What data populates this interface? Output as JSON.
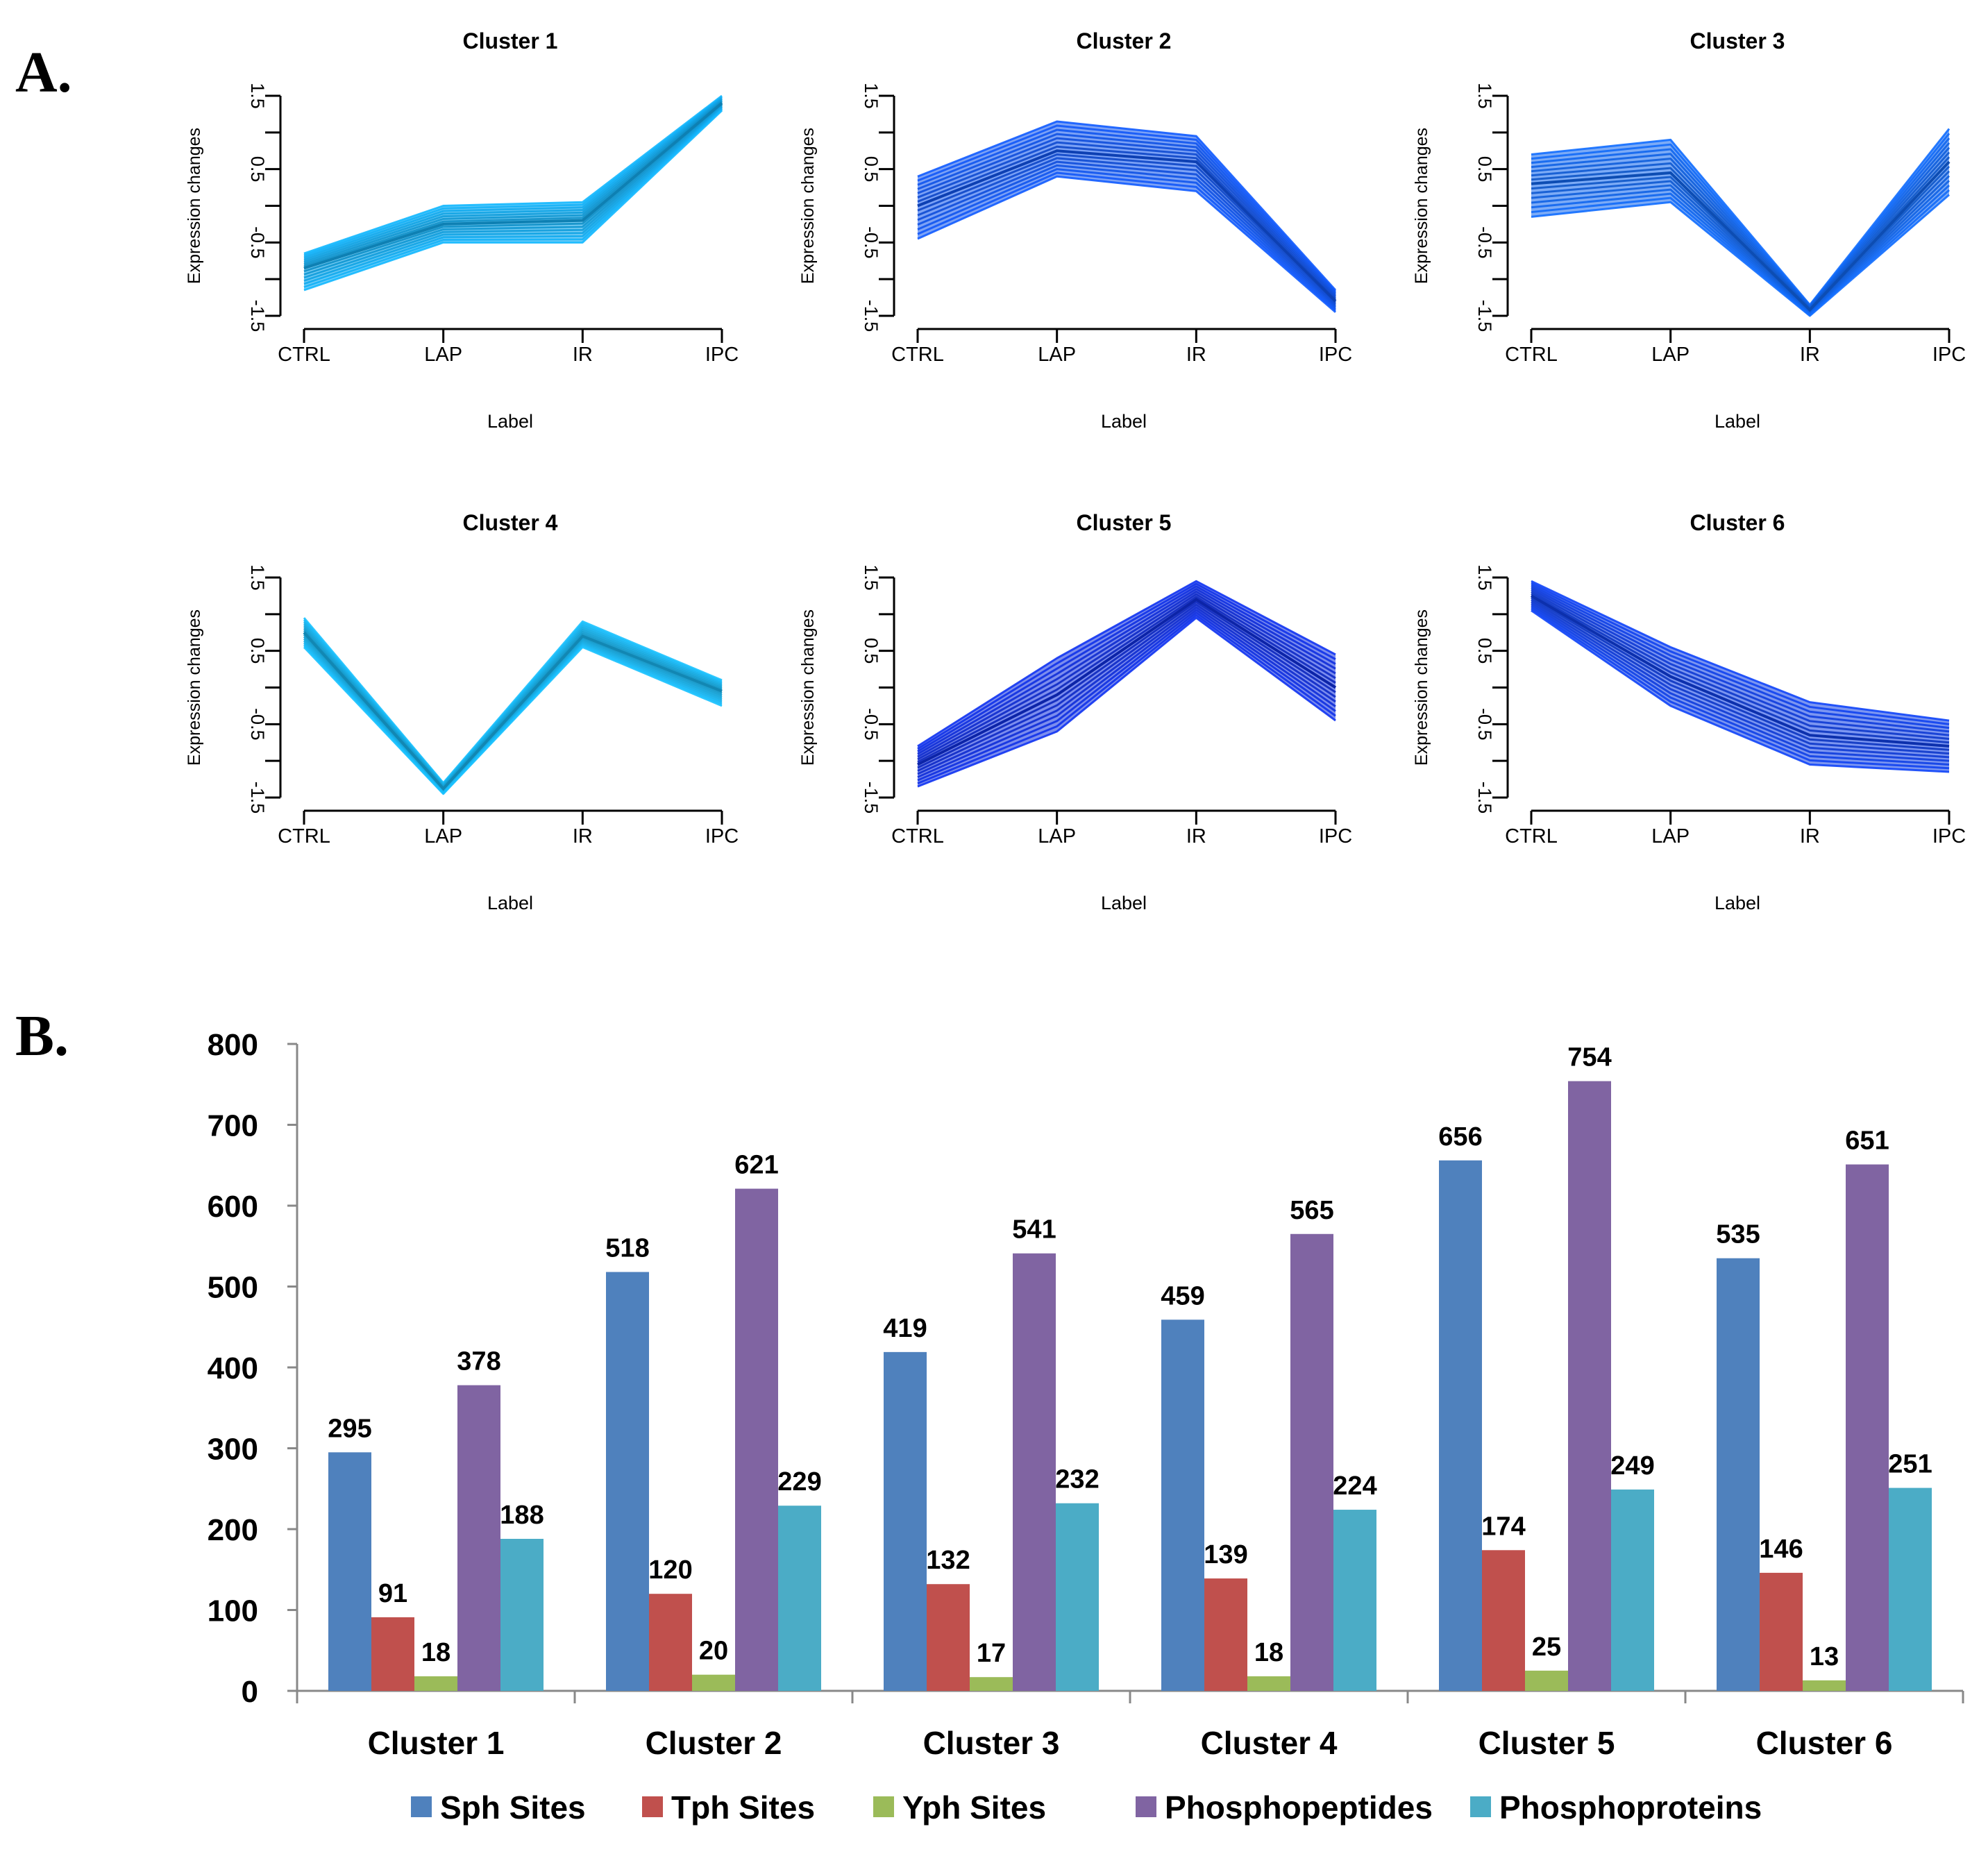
{
  "panel_labels": {
    "a": "A.",
    "b": "B."
  },
  "chart_data": [
    {
      "type": "line",
      "title": "Cluster 1",
      "xlabel": "Label",
      "ylabel": "Expression changes",
      "categories": [
        "CTRL",
        "LAP",
        "IR",
        "IPC"
      ],
      "yticks": [
        "-1.5",
        "-0.5",
        "0.5",
        "1.5"
      ],
      "ylim": [
        -1.5,
        1.5
      ],
      "color": "#12aaee",
      "series": [
        {
          "name": "upper envelope",
          "values": [
            -0.65,
            0.0,
            0.05,
            1.5
          ]
        },
        {
          "name": "median profile",
          "values": [
            -0.85,
            -0.25,
            -0.2,
            1.4
          ]
        },
        {
          "name": "lower envelope",
          "values": [
            -1.15,
            -0.5,
            -0.5,
            1.3
          ]
        }
      ]
    },
    {
      "type": "line",
      "title": "Cluster 2",
      "xlabel": "Label",
      "ylabel": "Expression changes",
      "categories": [
        "CTRL",
        "LAP",
        "IR",
        "IPC"
      ],
      "yticks": [
        "-1.5",
        "-0.5",
        "0.5",
        "1.5"
      ],
      "ylim": [
        -1.5,
        1.5
      ],
      "color": "#1155ee",
      "series": [
        {
          "name": "upper envelope",
          "values": [
            0.4,
            1.15,
            0.95,
            -1.15
          ]
        },
        {
          "name": "median profile",
          "values": [
            0.0,
            0.75,
            0.6,
            -1.3
          ]
        },
        {
          "name": "lower envelope",
          "values": [
            -0.45,
            0.4,
            0.2,
            -1.45
          ]
        }
      ]
    },
    {
      "type": "line",
      "title": "Cluster 3",
      "xlabel": "Label",
      "ylabel": "Expression changes",
      "categories": [
        "CTRL",
        "LAP",
        "IR",
        "IPC"
      ],
      "yticks": [
        "-1.5",
        "-0.5",
        "0.5",
        "1.5"
      ],
      "ylim": [
        -1.5,
        1.5
      ],
      "color": "#1166ee",
      "series": [
        {
          "name": "upper envelope",
          "values": [
            0.7,
            0.9,
            -1.35,
            1.05
          ]
        },
        {
          "name": "median profile",
          "values": [
            0.3,
            0.45,
            -1.42,
            0.6
          ]
        },
        {
          "name": "lower envelope",
          "values": [
            -0.15,
            0.05,
            -1.5,
            0.15
          ]
        }
      ]
    },
    {
      "type": "line",
      "title": "Cluster 4",
      "xlabel": "Label",
      "ylabel": "Expression changes",
      "categories": [
        "CTRL",
        "LAP",
        "IR",
        "IPC"
      ],
      "yticks": [
        "-1.5",
        "-0.5",
        "0.5",
        "1.5"
      ],
      "ylim": [
        -1.5,
        1.5
      ],
      "color": "#18b4ee",
      "series": [
        {
          "name": "upper envelope",
          "values": [
            0.95,
            -1.3,
            0.9,
            0.1
          ]
        },
        {
          "name": "median profile",
          "values": [
            0.75,
            -1.38,
            0.7,
            -0.05
          ]
        },
        {
          "name": "lower envelope",
          "values": [
            0.55,
            -1.45,
            0.55,
            -0.25
          ]
        }
      ]
    },
    {
      "type": "line",
      "title": "Cluster 5",
      "xlabel": "Label",
      "ylabel": "Expression changes",
      "categories": [
        "CTRL",
        "LAP",
        "IR",
        "IPC"
      ],
      "yticks": [
        "-1.5",
        "-0.5",
        "0.5",
        "1.5"
      ],
      "ylim": [
        -1.5,
        1.5
      ],
      "color": "#1030e0",
      "series": [
        {
          "name": "upper envelope",
          "values": [
            -0.8,
            0.4,
            1.45,
            0.45
          ]
        },
        {
          "name": "median profile",
          "values": [
            -1.05,
            -0.1,
            1.2,
            0.0
          ]
        },
        {
          "name": "lower envelope",
          "values": [
            -1.35,
            -0.6,
            0.95,
            -0.45
          ]
        }
      ]
    },
    {
      "type": "line",
      "title": "Cluster 6",
      "xlabel": "Label",
      "ylabel": "Expression changes",
      "categories": [
        "CTRL",
        "LAP",
        "IR",
        "IPC"
      ],
      "yticks": [
        "-1.5",
        "-0.5",
        "0.5",
        "1.5"
      ],
      "ylim": [
        -1.5,
        1.5
      ],
      "color": "#1040e6",
      "series": [
        {
          "name": "upper envelope",
          "values": [
            1.45,
            0.55,
            -0.2,
            -0.45
          ]
        },
        {
          "name": "median profile",
          "values": [
            1.25,
            0.15,
            -0.65,
            -0.8
          ]
        },
        {
          "name": "lower envelope",
          "values": [
            1.05,
            -0.25,
            -1.05,
            -1.15
          ]
        }
      ]
    },
    {
      "type": "bar",
      "title": "",
      "xlabel": "",
      "ylabel": "",
      "categories": [
        "Cluster 1",
        "Cluster 2",
        "Cluster 3",
        "Cluster 4",
        "Cluster 5",
        "Cluster 6"
      ],
      "ylim": [
        0,
        800
      ],
      "yticks": [
        "0",
        "100",
        "200",
        "300",
        "400",
        "500",
        "600",
        "700",
        "800"
      ],
      "legend_position": "bottom",
      "series": [
        {
          "name": "Sph Sites",
          "color": "#4f81bd",
          "values": [
            295,
            518,
            419,
            459,
            656,
            535
          ]
        },
        {
          "name": "Tph Sites",
          "color": "#c0504d",
          "values": [
            91,
            120,
            132,
            139,
            174,
            146
          ]
        },
        {
          "name": "Yph Sites",
          "color": "#9bbb59",
          "values": [
            18,
            20,
            17,
            18,
            25,
            13
          ]
        },
        {
          "name": "Phosphopeptides",
          "color": "#8064a2",
          "values": [
            378,
            621,
            541,
            565,
            754,
            651
          ]
        },
        {
          "name": "Phosphoproteins",
          "color": "#4bacc6",
          "values": [
            188,
            229,
            232,
            224,
            249,
            251
          ]
        }
      ]
    }
  ]
}
